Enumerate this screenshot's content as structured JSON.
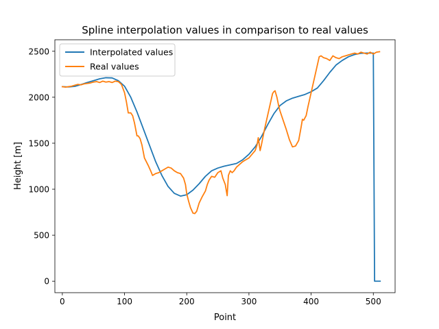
{
  "chart_data": {
    "type": "line",
    "title": "Spline interpolation values in comparison to real values",
    "xlabel": "Point",
    "ylabel": "Height [m]",
    "xlim": [
      -12,
      535
    ],
    "ylim": [
      -125,
      2625
    ],
    "xticks": [
      0,
      100,
      200,
      300,
      400,
      500
    ],
    "yticks": [
      0,
      500,
      1000,
      1500,
      2000,
      2500
    ],
    "grid": false,
    "legend": "upper left",
    "series": [
      {
        "name": "Interpolated values",
        "color": "#1f77b4",
        "x": [
          0,
          10,
          20,
          30,
          40,
          50,
          60,
          70,
          80,
          90,
          100,
          110,
          120,
          130,
          140,
          150,
          160,
          170,
          180,
          190,
          200,
          210,
          220,
          230,
          240,
          250,
          260,
          270,
          280,
          290,
          300,
          310,
          320,
          330,
          340,
          350,
          360,
          370,
          380,
          390,
          400,
          410,
          420,
          430,
          440,
          450,
          460,
          470,
          480,
          490,
          500,
          502,
          511
        ],
        "y": [
          2115,
          2112,
          2118,
          2138,
          2160,
          2180,
          2200,
          2212,
          2210,
          2180,
          2120,
          2000,
          1840,
          1660,
          1480,
          1300,
          1150,
          1030,
          955,
          925,
          940,
          990,
          1060,
          1140,
          1200,
          1230,
          1250,
          1265,
          1280,
          1320,
          1380,
          1460,
          1570,
          1700,
          1820,
          1910,
          1960,
          1990,
          2010,
          2030,
          2060,
          2100,
          2180,
          2270,
          2350,
          2400,
          2440,
          2465,
          2478,
          2480,
          2480,
          0,
          0
        ]
      },
      {
        "name": "Real values",
        "color": "#ff7f0e",
        "x": [
          0,
          5,
          10,
          15,
          20,
          25,
          30,
          35,
          40,
          45,
          50,
          55,
          60,
          65,
          70,
          75,
          80,
          85,
          90,
          95,
          100,
          103,
          106,
          110,
          113,
          116,
          118,
          120,
          122,
          125,
          128,
          132,
          138,
          142,
          145,
          150,
          155,
          160,
          165,
          170,
          175,
          180,
          185,
          190,
          195,
          198,
          200,
          203,
          206,
          210,
          213,
          216,
          220,
          225,
          230,
          233,
          236,
          240,
          245,
          250,
          255,
          258,
          262,
          265,
          267,
          270,
          273,
          276,
          280,
          285,
          290,
          295,
          300,
          305,
          310,
          313,
          315,
          318,
          320,
          325,
          330,
          335,
          338,
          340,
          342,
          345,
          348,
          350,
          355,
          360,
          365,
          370,
          375,
          380,
          384,
          386,
          388,
          392,
          395,
          400,
          405,
          410,
          413,
          416,
          420,
          425,
          430,
          435,
          440,
          445,
          450,
          455,
          460,
          465,
          470,
          475,
          480,
          485,
          490,
          495,
          500,
          505,
          510
        ],
        "y": [
          2115,
          2110,
          2115,
          2120,
          2130,
          2140,
          2135,
          2145,
          2150,
          2155,
          2165,
          2170,
          2160,
          2175,
          2165,
          2170,
          2160,
          2175,
          2170,
          2140,
          2050,
          1950,
          1830,
          1830,
          1800,
          1720,
          1650,
          1580,
          1580,
          1550,
          1480,
          1340,
          1260,
          1200,
          1150,
          1170,
          1180,
          1200,
          1220,
          1240,
          1230,
          1200,
          1180,
          1170,
          1120,
          1050,
          950,
          870,
          800,
          740,
          735,
          760,
          850,
          920,
          980,
          1050,
          1100,
          1140,
          1130,
          1180,
          1200,
          1120,
          1050,
          930,
          1150,
          1200,
          1180,
          1200,
          1240,
          1270,
          1300,
          1320,
          1340,
          1380,
          1420,
          1480,
          1560,
          1420,
          1480,
          1650,
          1800,
          1950,
          2040,
          2060,
          2070,
          2000,
          1900,
          1850,
          1750,
          1650,
          1540,
          1460,
          1470,
          1530,
          1680,
          1760,
          1750,
          1800,
          1900,
          2050,
          2200,
          2350,
          2440,
          2450,
          2430,
          2420,
          2400,
          2450,
          2430,
          2420,
          2440,
          2450,
          2460,
          2470,
          2480,
          2470,
          2490,
          2480,
          2470,
          2490,
          2470,
          2490,
          2495
        ]
      }
    ]
  }
}
